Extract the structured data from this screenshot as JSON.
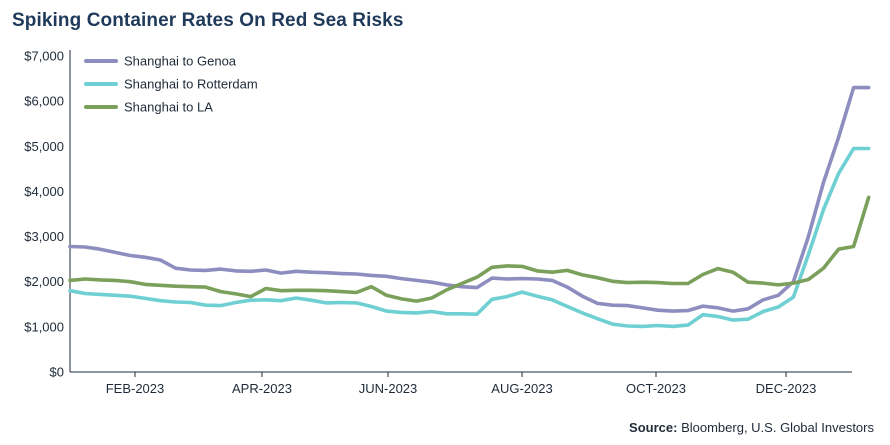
{
  "title": "Spiking Container Rates On Red Sea Risks",
  "source": {
    "label": "Source:",
    "text": "Bloomberg, U.S. Global Investors"
  },
  "chart_data": {
    "type": "line",
    "title": "Spiking Container Rates On Red Sea Risks",
    "xlabel": "",
    "ylabel": "",
    "ylim": [
      0,
      7000
    ],
    "y_ticks": [
      0,
      1000,
      2000,
      3000,
      4000,
      5000,
      6000,
      7000
    ],
    "y_tick_labels": [
      "$0",
      "$1,000",
      "$2,000",
      "$3,000",
      "$4,000",
      "$5,000",
      "$6,000",
      "$7,000"
    ],
    "x_tick_labels": [
      "FEB-2023",
      "APR-2023",
      "JUN-2023",
      "AUG-2023",
      "OCT-2023",
      "DEC-2023"
    ],
    "grid": false,
    "legend": "top-left",
    "x_weeks": [
      0,
      1,
      2,
      3,
      4,
      5,
      6,
      7,
      8,
      9,
      10,
      11,
      12,
      13,
      14,
      15,
      16,
      17,
      18,
      19,
      20,
      21,
      22,
      23,
      24,
      25,
      26,
      27,
      28,
      29,
      30,
      31,
      32,
      33,
      34,
      35,
      36,
      37,
      38,
      39,
      40,
      41,
      42,
      43,
      44,
      45,
      46,
      47,
      48,
      49,
      50,
      51,
      52,
      53
    ],
    "series": [
      {
        "name": "Shanghai to Genoa",
        "color": "#8e8dbf",
        "values": [
          2780,
          2770,
          2720,
          2650,
          2580,
          2540,
          2480,
          2300,
          2260,
          2250,
          2280,
          2240,
          2230,
          2260,
          2190,
          2230,
          2210,
          2200,
          2180,
          2170,
          2140,
          2120,
          2070,
          2030,
          1990,
          1930,
          1890,
          1870,
          2080,
          2060,
          2070,
          2060,
          2030,
          1880,
          1680,
          1520,
          1480,
          1470,
          1420,
          1370,
          1350,
          1360,
          1460,
          1420,
          1350,
          1400,
          1600,
          1700,
          2000,
          3000,
          4200,
          5200,
          6300,
          6300
        ]
      },
      {
        "name": "Shanghai to Rotterdam",
        "color": "#6fd0d3",
        "values": [
          1800,
          1740,
          1720,
          1700,
          1680,
          1630,
          1580,
          1550,
          1540,
          1480,
          1470,
          1540,
          1590,
          1600,
          1580,
          1640,
          1590,
          1530,
          1540,
          1530,
          1450,
          1350,
          1320,
          1310,
          1340,
          1290,
          1290,
          1280,
          1610,
          1670,
          1770,
          1680,
          1600,
          1450,
          1310,
          1180,
          1060,
          1020,
          1010,
          1030,
          1010,
          1040,
          1270,
          1230,
          1150,
          1170,
          1340,
          1440,
          1660,
          2600,
          3600,
          4400,
          4950,
          4950
        ]
      },
      {
        "name": "Shanghai to LA",
        "color": "#7ba05b",
        "values": [
          2030,
          2060,
          2040,
          2030,
          2000,
          1940,
          1920,
          1900,
          1890,
          1880,
          1780,
          1730,
          1670,
          1850,
          1800,
          1810,
          1810,
          1800,
          1780,
          1760,
          1890,
          1700,
          1620,
          1570,
          1640,
          1820,
          1960,
          2100,
          2320,
          2350,
          2340,
          2240,
          2210,
          2250,
          2150,
          2090,
          2010,
          1980,
          1990,
          1980,
          1960,
          1960,
          2160,
          2290,
          2210,
          1990,
          1970,
          1930,
          1970,
          2050,
          2300,
          2720,
          2780,
          3870
        ]
      }
    ]
  }
}
